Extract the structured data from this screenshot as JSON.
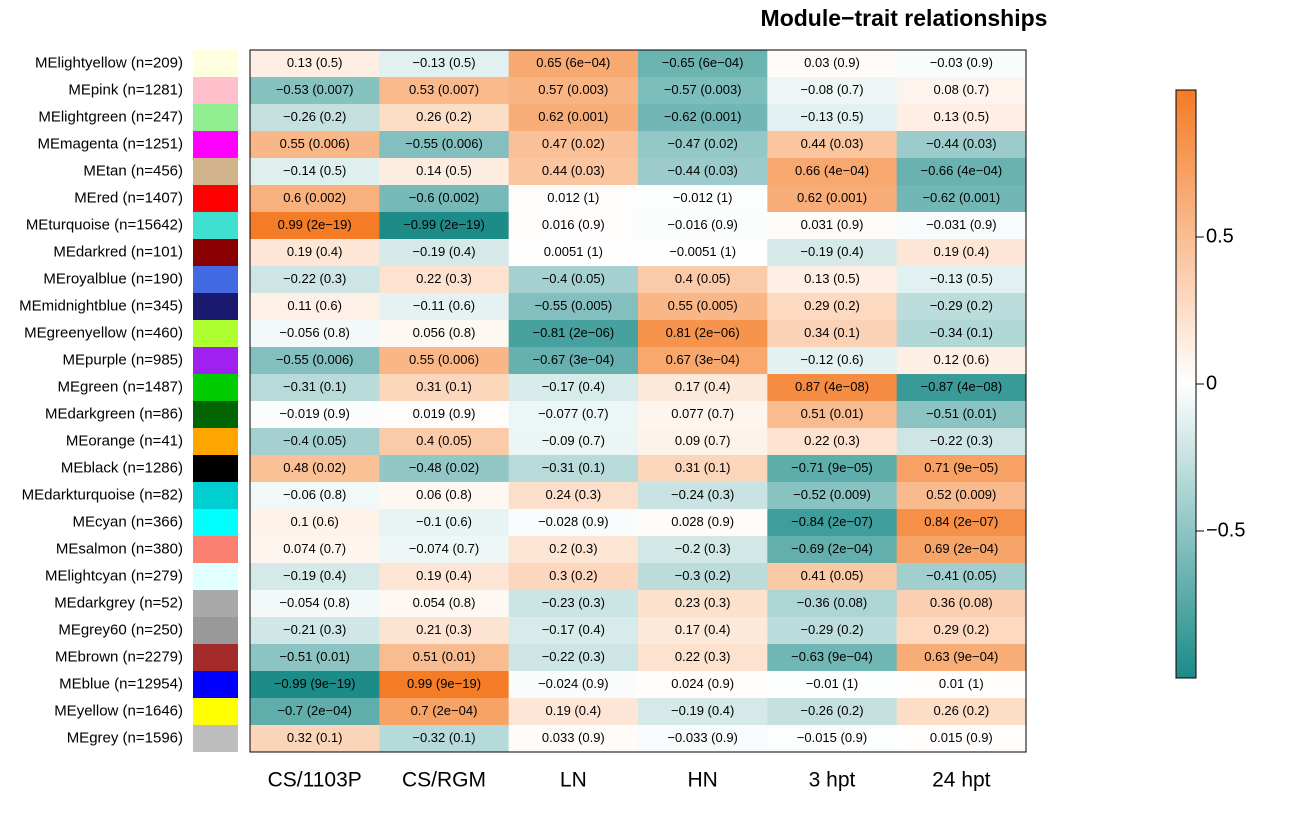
{
  "chart_data": {
    "type": "heatmap",
    "title": "Module−trait relationships",
    "x_categories": [
      "CS/1103P",
      "CS/RGM",
      "LN",
      "HN",
      "3 hpt",
      "24 hpt"
    ],
    "y_categories": [
      "MElightyellow (n=209)",
      "MEpink (n=1281)",
      "MElightgreen (n=247)",
      "MEmagenta (n=1251)",
      "MEtan (n=456)",
      "MEred (n=1407)",
      "MEturquoise (n=15642)",
      "MEdarkred (n=101)",
      "MEroyalblue (n=190)",
      "MEmidnightblue (n=345)",
      "MEgreenyellow (n=460)",
      "MEpurple (n=985)",
      "MEgreen (n=1487)",
      "MEdarkgreen (n=86)",
      "MEorange (n=41)",
      "MEblack (n=1286)",
      "MEdarkturquoise (n=82)",
      "MEcyan (n=366)",
      "MEsalmon (n=380)",
      "MElightcyan (n=279)",
      "MEdarkgrey (n=52)",
      "MEgrey60 (n=250)",
      "MEbrown (n=2279)",
      "MEblue (n=12954)",
      "MEyellow (n=1646)",
      "MEgrey (n=1596)"
    ],
    "row_colors": [
      "#ffffe0",
      "#ffc0cb",
      "#90ee90",
      "#ff00ff",
      "#d2b48c",
      "#ff0000",
      "#40e0d0",
      "#8b0000",
      "#4169e1",
      "#191970",
      "#adff2f",
      "#a020f0",
      "#00cd00",
      "#006400",
      "#ffa500",
      "#000000",
      "#00ced1",
      "#00ffff",
      "#fa8072",
      "#e0ffff",
      "#a9a9a9",
      "#999999",
      "#a52a2a",
      "#0000ff",
      "#ffff00",
      "#bebebe"
    ],
    "values": [
      [
        0.13,
        -0.13,
        0.65,
        -0.65,
        0.03,
        -0.03
      ],
      [
        -0.53,
        0.53,
        0.57,
        -0.57,
        -0.08,
        0.08
      ],
      [
        -0.26,
        0.26,
        0.62,
        -0.62,
        -0.13,
        0.13
      ],
      [
        0.55,
        -0.55,
        0.47,
        -0.47,
        0.44,
        -0.44
      ],
      [
        -0.14,
        0.14,
        0.44,
        -0.44,
        0.66,
        -0.66
      ],
      [
        0.6,
        -0.6,
        0.012,
        -0.012,
        0.62,
        -0.62
      ],
      [
        0.99,
        -0.99,
        0.016,
        -0.016,
        0.031,
        -0.031
      ],
      [
        0.19,
        -0.19,
        0.0051,
        -0.0051,
        -0.19,
        0.19
      ],
      [
        -0.22,
        0.22,
        -0.4,
        0.4,
        0.13,
        -0.13
      ],
      [
        0.11,
        -0.11,
        -0.55,
        0.55,
        0.29,
        -0.29
      ],
      [
        -0.056,
        0.056,
        -0.81,
        0.81,
        0.34,
        -0.34
      ],
      [
        -0.55,
        0.55,
        -0.67,
        0.67,
        -0.12,
        0.12
      ],
      [
        -0.31,
        0.31,
        -0.17,
        0.17,
        0.87,
        -0.87
      ],
      [
        -0.019,
        0.019,
        -0.077,
        0.077,
        0.51,
        -0.51
      ],
      [
        -0.4,
        0.4,
        -0.09,
        0.09,
        0.22,
        -0.22
      ],
      [
        0.48,
        -0.48,
        -0.31,
        0.31,
        -0.71,
        0.71
      ],
      [
        -0.06,
        0.06,
        0.24,
        -0.24,
        -0.52,
        0.52
      ],
      [
        0.1,
        -0.1,
        -0.028,
        0.028,
        -0.84,
        0.84
      ],
      [
        0.074,
        -0.074,
        0.2,
        -0.2,
        -0.69,
        0.69
      ],
      [
        -0.19,
        0.19,
        0.3,
        -0.3,
        0.41,
        -0.41
      ],
      [
        -0.054,
        0.054,
        -0.23,
        0.23,
        -0.36,
        0.36
      ],
      [
        -0.21,
        0.21,
        -0.17,
        0.17,
        -0.29,
        0.29
      ],
      [
        -0.51,
        0.51,
        -0.22,
        0.22,
        -0.63,
        0.63
      ],
      [
        -0.99,
        0.99,
        -0.024,
        0.024,
        -0.01,
        0.01
      ],
      [
        -0.7,
        0.7,
        0.19,
        -0.19,
        -0.26,
        0.26
      ],
      [
        0.32,
        -0.32,
        0.033,
        -0.033,
        -0.015,
        0.015
      ]
    ],
    "value_labels": [
      [
        "0.13 (0.5)",
        "−0.13 (0.5)",
        "0.65 (6e−04)",
        "−0.65 (6e−04)",
        "0.03 (0.9)",
        "−0.03 (0.9)"
      ],
      [
        "−0.53 (0.007)",
        "0.53 (0.007)",
        "0.57 (0.003)",
        "−0.57 (0.003)",
        "−0.08 (0.7)",
        "0.08 (0.7)"
      ],
      [
        "−0.26 (0.2)",
        "0.26 (0.2)",
        "0.62 (0.001)",
        "−0.62 (0.001)",
        "−0.13 (0.5)",
        "0.13 (0.5)"
      ],
      [
        "0.55 (0.006)",
        "−0.55 (0.006)",
        "0.47 (0.02)",
        "−0.47 (0.02)",
        "0.44 (0.03)",
        "−0.44 (0.03)"
      ],
      [
        "−0.14 (0.5)",
        "0.14 (0.5)",
        "0.44 (0.03)",
        "−0.44 (0.03)",
        "0.66 (4e−04)",
        "−0.66 (4e−04)"
      ],
      [
        "0.6 (0.002)",
        "−0.6 (0.002)",
        "0.012 (1)",
        "−0.012 (1)",
        "0.62 (0.001)",
        "−0.62 (0.001)"
      ],
      [
        "0.99 (2e−19)",
        "−0.99 (2e−19)",
        "0.016 (0.9)",
        "−0.016 (0.9)",
        "0.031 (0.9)",
        "−0.031 (0.9)"
      ],
      [
        "0.19 (0.4)",
        "−0.19 (0.4)",
        "0.0051 (1)",
        "−0.0051 (1)",
        "−0.19 (0.4)",
        "0.19 (0.4)"
      ],
      [
        "−0.22 (0.3)",
        "0.22 (0.3)",
        "−0.4 (0.05)",
        "0.4 (0.05)",
        "0.13 (0.5)",
        "−0.13 (0.5)"
      ],
      [
        "0.11 (0.6)",
        "−0.11 (0.6)",
        "−0.55 (0.005)",
        "0.55 (0.005)",
        "0.29 (0.2)",
        "−0.29 (0.2)"
      ],
      [
        "−0.056 (0.8)",
        "0.056 (0.8)",
        "−0.81 (2e−06)",
        "0.81 (2e−06)",
        "0.34 (0.1)",
        "−0.34 (0.1)"
      ],
      [
        "−0.55 (0.006)",
        "0.55 (0.006)",
        "−0.67 (3e−04)",
        "0.67 (3e−04)",
        "−0.12 (0.6)",
        "0.12 (0.6)"
      ],
      [
        "−0.31 (0.1)",
        "0.31 (0.1)",
        "−0.17 (0.4)",
        "0.17 (0.4)",
        "0.87 (4e−08)",
        "−0.87 (4e−08)"
      ],
      [
        "−0.019 (0.9)",
        "0.019 (0.9)",
        "−0.077 (0.7)",
        "0.077 (0.7)",
        "0.51 (0.01)",
        "−0.51 (0.01)"
      ],
      [
        "−0.4 (0.05)",
        "0.4 (0.05)",
        "−0.09 (0.7)",
        "0.09 (0.7)",
        "0.22 (0.3)",
        "−0.22 (0.3)"
      ],
      [
        "0.48 (0.02)",
        "−0.48 (0.02)",
        "−0.31 (0.1)",
        "0.31 (0.1)",
        "−0.71 (9e−05)",
        "0.71 (9e−05)"
      ],
      [
        "−0.06 (0.8)",
        "0.06 (0.8)",
        "0.24 (0.3)",
        "−0.24 (0.3)",
        "−0.52 (0.009)",
        "0.52 (0.009)"
      ],
      [
        "0.1 (0.6)",
        "−0.1 (0.6)",
        "−0.028 (0.9)",
        "0.028 (0.9)",
        "−0.84 (2e−07)",
        "0.84 (2e−07)"
      ],
      [
        "0.074 (0.7)",
        "−0.074 (0.7)",
        "0.2 (0.3)",
        "−0.2 (0.3)",
        "−0.69 (2e−04)",
        "0.69 (2e−04)"
      ],
      [
        "−0.19 (0.4)",
        "0.19 (0.4)",
        "0.3 (0.2)",
        "−0.3 (0.2)",
        "0.41 (0.05)",
        "−0.41 (0.05)"
      ],
      [
        "−0.054 (0.8)",
        "0.054 (0.8)",
        "−0.23 (0.3)",
        "0.23 (0.3)",
        "−0.36 (0.08)",
        "0.36 (0.08)"
      ],
      [
        "−0.21 (0.3)",
        "0.21 (0.3)",
        "−0.17 (0.4)",
        "0.17 (0.4)",
        "−0.29 (0.2)",
        "0.29 (0.2)"
      ],
      [
        "−0.51 (0.01)",
        "0.51 (0.01)",
        "−0.22 (0.3)",
        "0.22 (0.3)",
        "−0.63 (9e−04)",
        "0.63 (9e−04)"
      ],
      [
        "−0.99 (9e−19)",
        "0.99 (9e−19)",
        "−0.024 (0.9)",
        "0.024 (0.9)",
        "−0.01 (1)",
        "0.01 (1)"
      ],
      [
        "−0.7 (2e−04)",
        "0.7 (2e−04)",
        "0.19 (0.4)",
        "−0.19 (0.4)",
        "−0.26 (0.2)",
        "0.26 (0.2)"
      ],
      [
        "0.32 (0.1)",
        "−0.32 (0.1)",
        "0.033 (0.9)",
        "−0.033 (0.9)",
        "−0.015 (0.9)",
        "0.015 (0.9)"
      ]
    ],
    "zlim": [
      -1,
      1
    ],
    "zticks": [
      {
        "value": 0.5,
        "label": "0.5"
      },
      0,
      {
        "value": -0.5,
        "label": "−0.5"
      }
    ],
    "colors": {
      "low": "#1b8b88",
      "mid": "#ffffff",
      "high": "#f47b25"
    }
  }
}
